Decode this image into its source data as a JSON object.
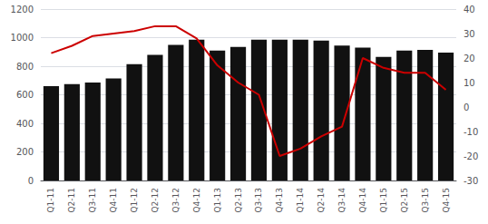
{
  "chart_data": {
    "type": "bar",
    "categories": [
      "Q1-11",
      "Q2-11",
      "Q3-11",
      "Q4-11",
      "Q1-12",
      "Q2-12",
      "Q3-12",
      "Q4-12",
      "Q1-13",
      "Q2-13",
      "Q3-13",
      "Q4-13",
      "Q1-14",
      "Q2-14",
      "Q3-14",
      "Q4-14",
      "Q1-15",
      "Q2-15",
      "Q3-15",
      "Q4-15"
    ],
    "series": [
      {
        "type": "bar",
        "color": "#111111",
        "values": [
          660,
          675,
          685,
          715,
          815,
          880,
          950,
          985,
          910,
          935,
          985,
          985,
          985,
          980,
          945,
          930,
          865,
          910,
          915,
          895
        ]
      },
      {
        "type": "line",
        "color": "#cc0000",
        "axis": "y2",
        "values": [
          22,
          25,
          29,
          30,
          31,
          33,
          33,
          28,
          17,
          10,
          5,
          -20,
          -17,
          -12,
          -8,
          20,
          16,
          14,
          14,
          7
        ]
      }
    ],
    "ylim": [
      0,
      1200
    ],
    "yticks": [
      0,
      200,
      400,
      600,
      800,
      1000,
      1200
    ],
    "y2lim": [
      -30,
      40
    ],
    "y2ticks": [
      -30,
      -20,
      -10,
      0,
      10,
      20,
      30,
      40
    ],
    "grid": true
  }
}
